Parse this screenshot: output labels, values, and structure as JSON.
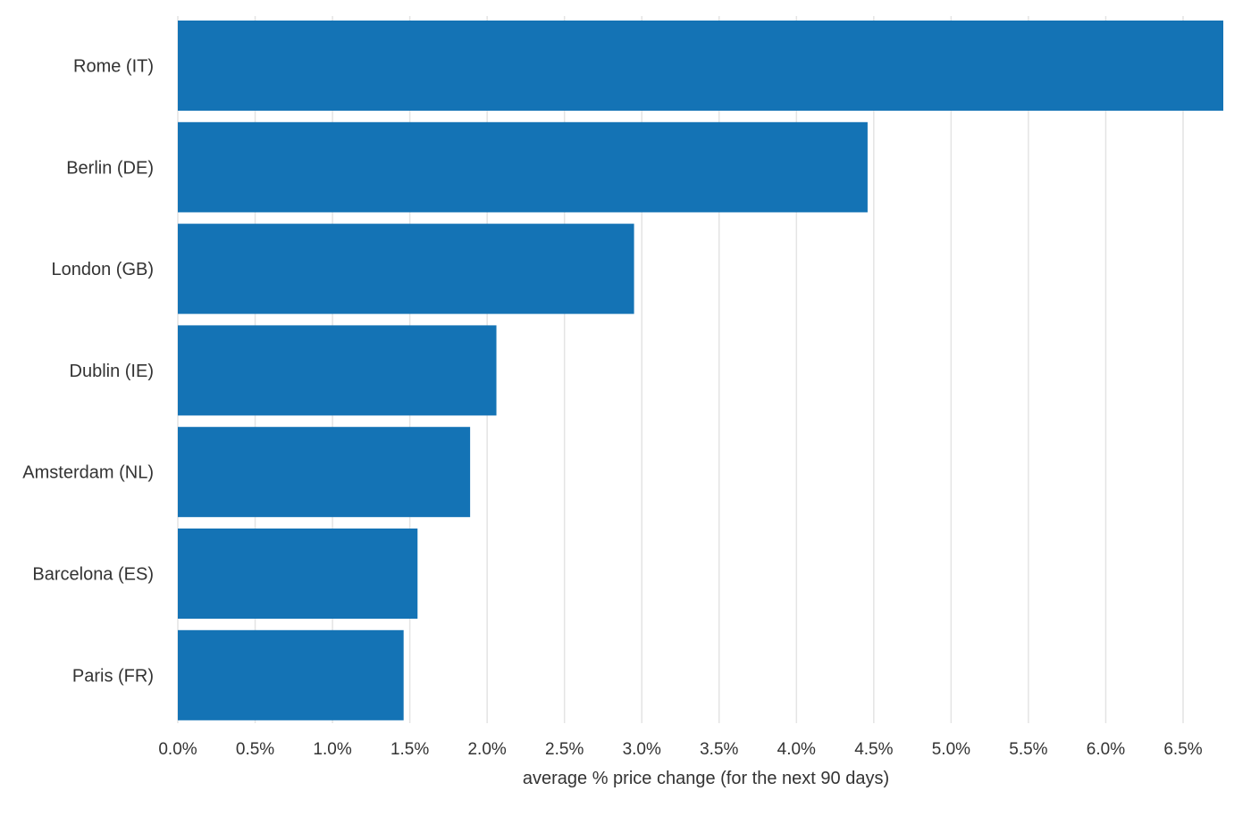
{
  "colors": {
    "bar": "#1473b5",
    "grid": "#e4e4e4",
    "text": "#333333"
  },
  "chart_data": {
    "type": "bar",
    "orientation": "horizontal",
    "categories": [
      "Rome (IT)",
      "Berlin (DE)",
      "London (GB)",
      "Dublin (IE)",
      "Amsterdam (NL)",
      "Barcelona (ES)",
      "Paris (FR)"
    ],
    "values": [
      6.76,
      4.46,
      2.95,
      2.06,
      1.89,
      1.55,
      1.46
    ],
    "title": "",
    "xlabel": "average % price change (for the next 90 days)",
    "ylabel": "",
    "xlim": [
      0,
      6.76
    ],
    "xticks": [
      0,
      0.5,
      1,
      1.5,
      2,
      2.5,
      3,
      3.5,
      4,
      4.5,
      5,
      5.5,
      6,
      6.5
    ],
    "xtick_labels": [
      "0.0%",
      "0.5%",
      "1.0%",
      "1.5%",
      "2.0%",
      "2.5%",
      "3.0%",
      "3.5%",
      "4.0%",
      "4.5%",
      "5.0%",
      "5.5%",
      "6.0%",
      "6.5%"
    ],
    "grid": "vertical",
    "legend": "none"
  }
}
